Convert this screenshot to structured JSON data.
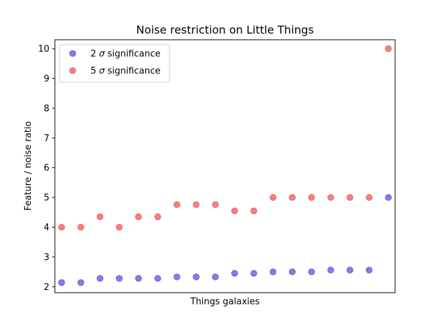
{
  "chart_data": {
    "type": "scatter",
    "title": "Noise restriction on Little Things",
    "xlabel": "Things galaxies",
    "ylabel": "Feature / noise ratio",
    "ylim": [
      1.8,
      10.3
    ],
    "yticks": [
      2,
      3,
      4,
      5,
      6,
      7,
      8,
      9,
      10
    ],
    "x": [
      1,
      2,
      3,
      4,
      5,
      6,
      7,
      8,
      9,
      10,
      11,
      12,
      13,
      14,
      15,
      16,
      17,
      18
    ],
    "xlim": [
      0.65,
      18.35
    ],
    "legend_position": "upper-left",
    "series": [
      {
        "name": "2 σ significance",
        "name_prefix": "2 ",
        "name_symbol": "σ",
        "name_suffix": " significance",
        "color": "#0000cc",
        "alpha": 0.5,
        "values": [
          2.14,
          2.14,
          2.28,
          2.28,
          2.28,
          2.28,
          2.33,
          2.33,
          2.33,
          2.45,
          2.45,
          2.5,
          2.5,
          2.5,
          2.56,
          2.56,
          2.56,
          5.0
        ]
      },
      {
        "name": "5 σ significance",
        "name_prefix": "5 ",
        "name_symbol": "σ",
        "name_suffix": " significance",
        "color": "#ee0000",
        "alpha": 0.5,
        "values": [
          4.0,
          4.0,
          4.35,
          4.0,
          4.35,
          4.35,
          4.76,
          4.76,
          4.76,
          4.55,
          4.55,
          5.0,
          5.0,
          5.0,
          5.0,
          5.0,
          5.0,
          10.0
        ]
      }
    ]
  }
}
